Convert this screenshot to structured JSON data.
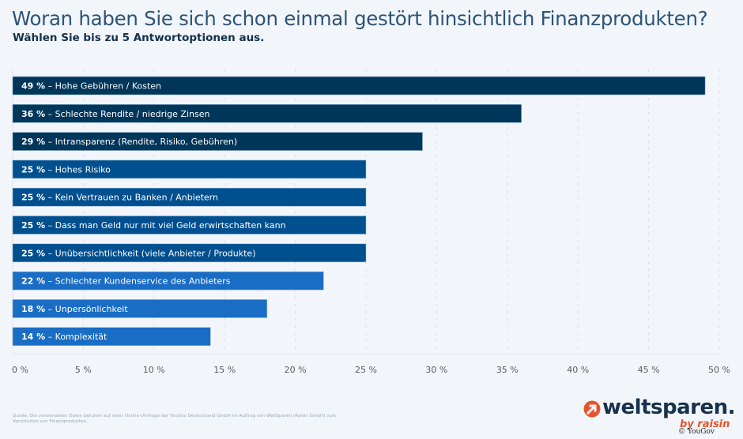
{
  "header": {
    "title": "Woran haben Sie sich schon einmal gestört hinsichtlich Finanzprodukten?",
    "subtitle": "Wählen Sie bis zu 5 Antwortoptionen aus."
  },
  "colors": {
    "bar_dark": "#00365a",
    "bar_mid": "#004f8f",
    "bar_light": "#1a6dc4",
    "background": "#f2f6fb"
  },
  "chart_data": {
    "type": "bar",
    "orientation": "horizontal",
    "title": "Woran haben Sie sich schon einmal gestört hinsichtlich Finanzprodukten?",
    "subtitle": "Wählen Sie bis zu 5 Antwortoptionen aus.",
    "xlabel": "",
    "ylabel": "",
    "xlim": [
      0,
      50
    ],
    "grid": true,
    "x_ticks": [
      "0 %",
      "5 %",
      "10 %",
      "15 %",
      "20 %",
      "25 %",
      "30 %",
      "35 %",
      "40 %",
      "45 %",
      "50 %"
    ],
    "x_tick_values": [
      0,
      5,
      10,
      15,
      20,
      25,
      30,
      35,
      40,
      45,
      50
    ],
    "categories": [
      "Hohe Gebühren / Kosten",
      "Schlechte Rendite / niedrige Zinsen",
      "Intransparenz (Rendite, Risiko, Gebühren)",
      "Hohes Risiko",
      "Kein Vertrauen zu Banken / Anbietern",
      "Dass man Geld nur mit viel Geld erwirtschaften kann",
      "Unübersichtlichkeit (viele Anbieter / Produkte)",
      "Schlechter Kundenservice des Anbieters",
      "Unpersönlichkeit",
      "Komplexität"
    ],
    "values": [
      49,
      36,
      29,
      25,
      25,
      25,
      25,
      22,
      18,
      14
    ],
    "value_labels": [
      "49 %",
      "36 %",
      "29 %",
      "25 %",
      "25 %",
      "25 %",
      "25 %",
      "22 %",
      "18 %",
      "14 %"
    ],
    "bar_color_groups": [
      "dark",
      "dark",
      "dark",
      "mid",
      "mid",
      "mid",
      "mid",
      "light",
      "light",
      "light"
    ]
  },
  "footer": {
    "source": "Quelle: Die verwendeten Daten beruhen auf einer Online-Umfrage der YouGov Deutschland GmbH im Auftrag von WeltSparen (Raisin GmbH) zum Verständnis von Finanzprodukten.",
    "logo_text": "weltsparen.",
    "logo_subtext": "by raisin",
    "copyright": "© YouGov"
  }
}
